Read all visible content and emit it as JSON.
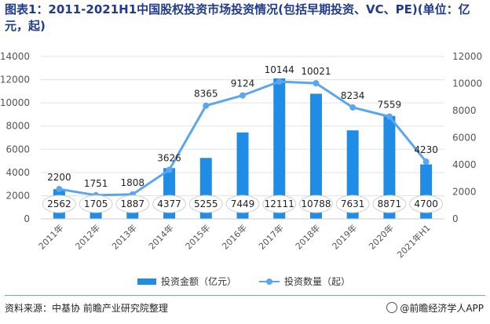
{
  "title": "图表1：2011-2021H1中国股权投资市场投资情况(包括早期投资、VC、PE)(单位：亿元，起)",
  "chart_data": {
    "type": "bar",
    "categories": [
      "2011年",
      "2012年",
      "2013年",
      "2014年",
      "2015年",
      "2016年",
      "2017年",
      "2018年",
      "2019年",
      "2020年",
      "2021年H1"
    ],
    "series": [
      {
        "name": "投资金额（亿元）",
        "kind": "bar",
        "axis": "left",
        "values": [
          2562,
          1705,
          1887,
          4377,
          5255,
          7449,
          12111,
          10788,
          7631,
          8871,
          4700
        ],
        "color": "#1f8de6"
      },
      {
        "name": "投资数量（起）",
        "kind": "line",
        "axis": "right",
        "values": [
          2200,
          1751,
          1808,
          3626,
          8365,
          9124,
          10144,
          10021,
          8234,
          7559,
          4230
        ],
        "color": "#5ba6ee"
      }
    ],
    "y_left": {
      "min": 0,
      "max": 14000,
      "ticks": [
        "0",
        "2000",
        "4000",
        "6000",
        "8000",
        "10000",
        "12000",
        "14000"
      ]
    },
    "y_right": {
      "min": 0,
      "max": 12000,
      "ticks": [
        "0",
        "2000",
        "4000",
        "6000",
        "8000",
        "10000",
        "12000"
      ]
    },
    "legend_position": "bottom"
  },
  "footer": {
    "source": "资料来源：中基协 前瞻产业研究院整理",
    "brand": "@前瞻经济学人APP"
  }
}
